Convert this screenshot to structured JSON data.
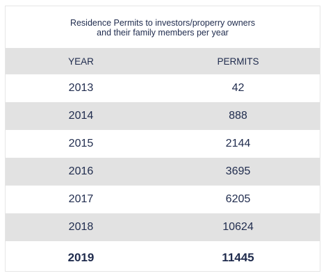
{
  "title": [
    "Residence Permits to investors/properry owners",
    "and their family members per year"
  ],
  "table": {
    "header": [
      "YEAR",
      "PERMITS"
    ],
    "rows": [
      [
        2013,
        42
      ],
      [
        2014,
        888
      ],
      [
        2015,
        2144
      ],
      [
        2016,
        3695
      ],
      [
        2017,
        6205
      ],
      [
        2018,
        10624
      ],
      [
        2019,
        11445
      ]
    ]
  }
}
